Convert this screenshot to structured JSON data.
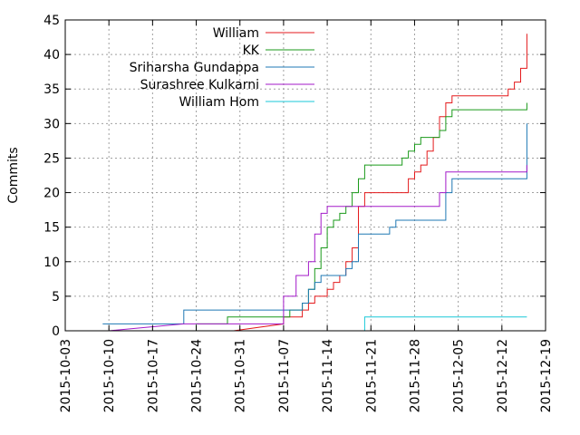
{
  "chart_data": {
    "type": "line",
    "ylabel": "Commits",
    "xlim": [
      "2015-10-03",
      "2015-12-19"
    ],
    "ylim": [
      0,
      45
    ],
    "y_ticks": [
      0,
      5,
      10,
      15,
      20,
      25,
      30,
      35,
      40,
      45
    ],
    "x_ticks": [
      "2015-10-03",
      "2015-10-10",
      "2015-10-17",
      "2015-10-24",
      "2015-10-31",
      "2015-11-07",
      "2015-11-14",
      "2015-11-21",
      "2015-11-28",
      "2015-12-05",
      "2015-12-12",
      "2015-12-19"
    ],
    "grid": "dotted",
    "legend_position": "top-center",
    "series": [
      {
        "name": "William",
        "color": "#e41a1c",
        "x": [
          "2015-10-30",
          "2015-11-07",
          "2015-11-07",
          "2015-11-10",
          "2015-11-10",
          "2015-11-11",
          "2015-11-11",
          "2015-11-12",
          "2015-11-12",
          "2015-11-14",
          "2015-11-14",
          "2015-11-15",
          "2015-11-15",
          "2015-11-16",
          "2015-11-16",
          "2015-11-17",
          "2015-11-17",
          "2015-11-18",
          "2015-11-18",
          "2015-11-19",
          "2015-11-19",
          "2015-11-20",
          "2015-11-20",
          "2015-11-27",
          "2015-11-27",
          "2015-11-28",
          "2015-11-28",
          "2015-11-29",
          "2015-11-29",
          "2015-11-30",
          "2015-11-30",
          "2015-12-01",
          "2015-12-01",
          "2015-12-02",
          "2015-12-02",
          "2015-12-03",
          "2015-12-03",
          "2015-12-04",
          "2015-12-04",
          "2015-12-13",
          "2015-12-13",
          "2015-12-14",
          "2015-12-14",
          "2015-12-15",
          "2015-12-15",
          "2015-12-16",
          "2015-12-16"
        ],
        "y": [
          0,
          1,
          2,
          2,
          3,
          3,
          4,
          4,
          5,
          5,
          6,
          6,
          7,
          7,
          8,
          8,
          10,
          10,
          12,
          12,
          18,
          18,
          20,
          20,
          22,
          22,
          23,
          23,
          24,
          24,
          26,
          26,
          28,
          28,
          31,
          31,
          33,
          33,
          34,
          34,
          35,
          35,
          36,
          36,
          38,
          38,
          43
        ]
      },
      {
        "name": "KK",
        "color": "#1a9a1a",
        "x": [
          "2015-10-23",
          "2015-10-24",
          "2015-10-24",
          "2015-10-25",
          "2015-10-25",
          "2015-10-29",
          "2015-10-29",
          "2015-11-08",
          "2015-11-08",
          "2015-11-10",
          "2015-11-10",
          "2015-11-11",
          "2015-11-11",
          "2015-11-12",
          "2015-11-12",
          "2015-11-13",
          "2015-11-13",
          "2015-11-14",
          "2015-11-14",
          "2015-11-15",
          "2015-11-15",
          "2015-11-16",
          "2015-11-16",
          "2015-11-17",
          "2015-11-17",
          "2015-11-18",
          "2015-11-18",
          "2015-11-19",
          "2015-11-19",
          "2015-11-20",
          "2015-11-20",
          "2015-11-26",
          "2015-11-26",
          "2015-11-27",
          "2015-11-27",
          "2015-11-28",
          "2015-11-28",
          "2015-11-29",
          "2015-11-29",
          "2015-12-02",
          "2015-12-02",
          "2015-12-03",
          "2015-12-03",
          "2015-12-04",
          "2015-12-04",
          "2015-12-15",
          "2015-12-15",
          "2015-12-16",
          "2015-12-16"
        ],
        "y": [
          0,
          0,
          1,
          1,
          1,
          1,
          2,
          2,
          3,
          3,
          4,
          4,
          6,
          6,
          9,
          9,
          12,
          12,
          15,
          15,
          16,
          16,
          17,
          17,
          18,
          18,
          20,
          20,
          22,
          22,
          24,
          24,
          25,
          25,
          26,
          26,
          27,
          27,
          28,
          28,
          29,
          29,
          31,
          31,
          32,
          32,
          32,
          32,
          33
        ]
      },
      {
        "name": "Sriharsha Gundappa",
        "color": "#1f78b4",
        "x": [
          "2015-10-09",
          "2015-10-22",
          "2015-10-22",
          "2015-11-10",
          "2015-11-10",
          "2015-11-11",
          "2015-11-11",
          "2015-11-12",
          "2015-11-12",
          "2015-11-13",
          "2015-11-13",
          "2015-11-17",
          "2015-11-17",
          "2015-11-18",
          "2015-11-18",
          "2015-11-19",
          "2015-11-19",
          "2015-11-20",
          "2015-11-20",
          "2015-11-24",
          "2015-11-24",
          "2015-11-25",
          "2015-11-25",
          "2015-12-03",
          "2015-12-03",
          "2015-12-04",
          "2015-12-04",
          "2015-12-16",
          "2015-12-16"
        ],
        "y": [
          1,
          1,
          3,
          3,
          4,
          4,
          6,
          6,
          7,
          7,
          8,
          8,
          9,
          9,
          10,
          10,
          14,
          14,
          14,
          14,
          15,
          15,
          16,
          16,
          20,
          20,
          22,
          22,
          30
        ]
      },
      {
        "name": "Surashree Kulkarni",
        "color": "#a31ac9",
        "x": [
          "2015-10-10",
          "2015-10-22",
          "2015-10-22",
          "2015-11-07",
          "2015-11-07",
          "2015-11-09",
          "2015-11-09",
          "2015-11-11",
          "2015-11-11",
          "2015-11-12",
          "2015-11-12",
          "2015-11-13",
          "2015-11-13",
          "2015-11-14",
          "2015-11-14",
          "2015-11-15",
          "2015-11-15",
          "2015-12-02",
          "2015-12-02",
          "2015-12-03",
          "2015-12-03",
          "2015-12-16",
          "2015-12-16"
        ],
        "y": [
          0,
          1,
          1,
          1,
          5,
          5,
          8,
          8,
          10,
          10,
          14,
          14,
          17,
          17,
          18,
          18,
          18,
          18,
          20,
          20,
          23,
          23,
          24
        ]
      },
      {
        "name": "William Hom",
        "color": "#1ac8d8",
        "x": [
          "2015-11-20",
          "2015-11-20",
          "2015-12-16"
        ],
        "y": [
          0,
          2,
          2
        ]
      }
    ]
  }
}
